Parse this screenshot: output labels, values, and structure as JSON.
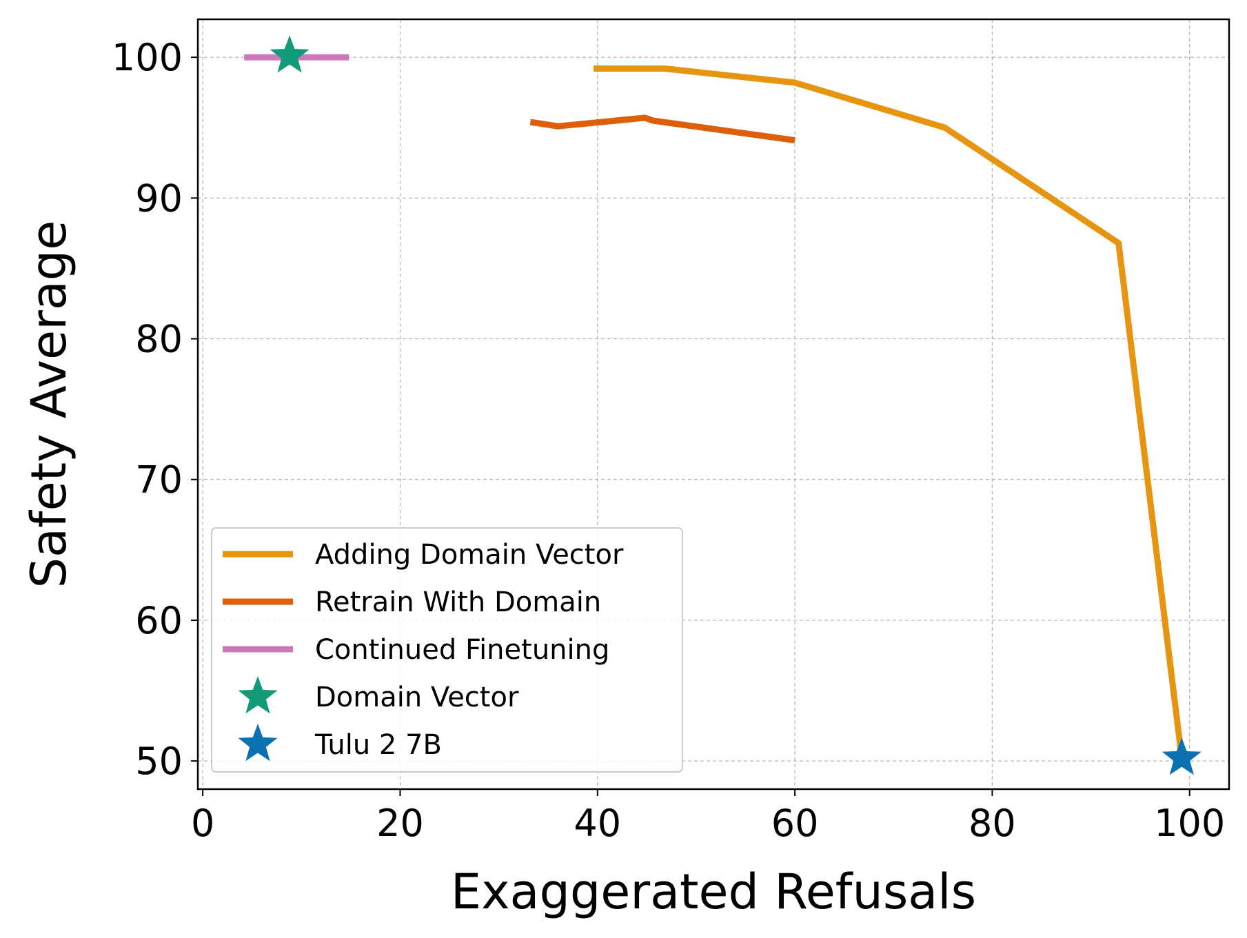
{
  "chart_data": {
    "type": "line",
    "xlabel": "Exaggerated Refusals",
    "ylabel": "Safety Average",
    "xlim": [
      -0.5,
      104
    ],
    "ylim": [
      48,
      102.7
    ],
    "xticks": [
      0,
      20,
      40,
      60,
      80,
      100
    ],
    "yticks": [
      50,
      60,
      70,
      80,
      90,
      100
    ],
    "xtick_labels": [
      "0",
      "20",
      "40",
      "60",
      "80",
      "100"
    ],
    "ytick_labels": [
      "50",
      "60",
      "70",
      "80",
      "90",
      "100"
    ],
    "grid": true,
    "legend_position": "lower-left",
    "series": [
      {
        "name": "Adding Domain Vector",
        "kind": "line",
        "color": "#e69510",
        "x": [
          39.6,
          46.8,
          60.0,
          75.2,
          92.8,
          99.2
        ],
        "y": [
          99.2,
          99.2,
          98.2,
          95.0,
          86.8,
          50.2
        ]
      },
      {
        "name": "Retrain With Domain",
        "kind": "line",
        "color": "#dd5f0a",
        "x": [
          33.2,
          36.0,
          44.8,
          45.6,
          60.0
        ],
        "y": [
          95.4,
          95.1,
          95.7,
          95.5,
          94.1
        ]
      },
      {
        "name": "Continued Finetuning",
        "kind": "line",
        "color": "#cc79bb",
        "x": [
          4.2,
          14.8
        ],
        "y": [
          100.0,
          100.0
        ]
      },
      {
        "name": "Domain Vector",
        "kind": "marker",
        "marker": "star",
        "color": "#139a78",
        "x": [
          8.8
        ],
        "y": [
          100.1
        ]
      },
      {
        "name": "Tulu 2 7B",
        "kind": "marker",
        "marker": "star",
        "color": "#0b71b0",
        "x": [
          99.2
        ],
        "y": [
          50.2
        ]
      }
    ]
  }
}
